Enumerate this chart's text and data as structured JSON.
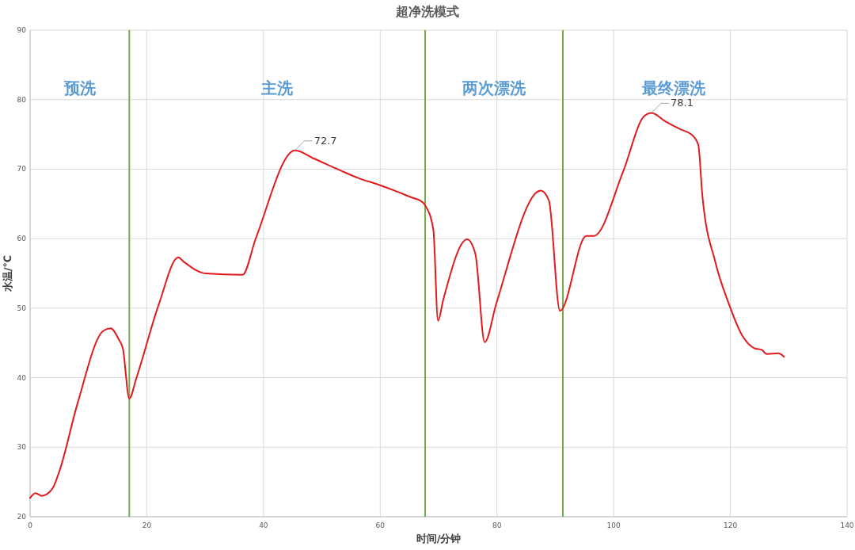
{
  "chart_data": {
    "type": "line",
    "title": "超净洗模式",
    "xlabel": "时间/分钟",
    "ylabel": "水温/℃",
    "xlim": [
      0,
      140
    ],
    "xticks": [
      0,
      20,
      40,
      60,
      80,
      100,
      120,
      140
    ],
    "ylim": [
      20,
      90
    ],
    "yticks": [
      20,
      30,
      40,
      50,
      60,
      70,
      80,
      90
    ],
    "grid": true,
    "marker": "none",
    "line_style": "solid",
    "series": [
      {
        "color": "#e31a1c",
        "x": [
          0,
          0.9,
          2.0,
          3.8,
          5.0,
          8.1,
          12.5,
          13.8,
          15.2,
          15.9,
          17.0,
          18.2,
          22.0,
          25.4,
          26.3,
          30.1,
          36.4,
          38.7,
          45.4,
          48.7,
          53.2,
          56.3,
          59.6,
          63.1,
          65.8,
          66.8,
          67.7,
          69.1,
          69.9,
          70.8,
          74.9,
          76.3,
          77.9,
          79.9,
          87.5,
          88.9,
          90.8,
          95.3,
          96.6,
          101.6,
          105.2,
          106.5,
          108.8,
          111.5,
          113.3,
          114.5,
          115.2,
          117.4,
          119.7,
          122.0,
          124.2,
          125.4,
          126.2,
          128.2,
          129.2
        ],
        "values": [
          22.7,
          23.4,
          23.0,
          24.0,
          26.5,
          36.2,
          46.7,
          47.1,
          45.5,
          44.2,
          37.0,
          39.9,
          50.4,
          57.3,
          56.7,
          55.0,
          54.8,
          60.1,
          72.7,
          71.5,
          69.8,
          68.7,
          67.8,
          66.7,
          65.8,
          65.5,
          64.8,
          61.3,
          48.2,
          51.2,
          59.9,
          57.8,
          45.1,
          50.7,
          66.9,
          65.5,
          49.6,
          60.4,
          60.4,
          69.6,
          77.6,
          78.1,
          76.9,
          75.7,
          75.0,
          73.5,
          66.2,
          56.7,
          50.7,
          46.1,
          44.2,
          44.0,
          43.4,
          43.5,
          43.0
        ]
      }
    ],
    "ref_lines": [
      {
        "axis": "x",
        "value": 17,
        "color": "#70ad47"
      },
      {
        "axis": "x",
        "value": 67.7,
        "color": "#70ad47"
      },
      {
        "axis": "x",
        "value": 91.3,
        "color": "#70ad47"
      }
    ],
    "annotations": [
      "预洗",
      "主洗",
      "两次漂洗",
      "最终漂洗",
      {
        "text": "72.7",
        "x": 45.4,
        "y": 72.7
      },
      {
        "text": "78.1",
        "x": 106.5,
        "y": 78.1
      }
    ]
  }
}
